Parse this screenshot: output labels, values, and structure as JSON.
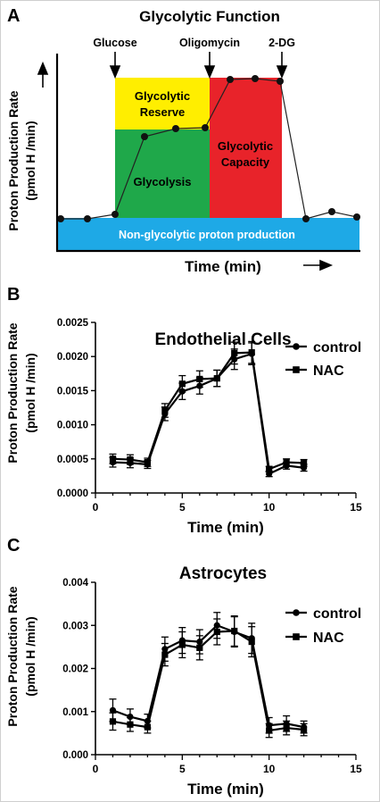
{
  "figure": {
    "panels": [
      {
        "letter": "A",
        "title": "Glycolytic Function",
        "xlabel": "Time (min)",
        "ylabel": [
          "Proton Production Rate",
          "(pmol H /min)"
        ],
        "injections": [
          "Glucose",
          "Oligomycin",
          "2-DG"
        ],
        "regions": {
          "nonglycolytic": "Non-glycolytic proton production",
          "reserve": [
            "Glycolytic",
            "Reserve"
          ],
          "glycolysis": "Glycolysis",
          "capacity": [
            "Glycolytic",
            "Capacity"
          ]
        },
        "colors": {
          "nonglycolytic": "#1ea9e6",
          "reserve": "#ffee00",
          "glycolysis": "#1fa84a",
          "capacity": "#e8232a"
        }
      }
    ]
  },
  "chart_data": [
    {
      "type": "line",
      "letter": "B",
      "title": "Endothelial Cells",
      "xlabel": "Time (min)",
      "ylabel": [
        "Proton Production Rate",
        "(pmol H /min)"
      ],
      "xlim": [
        0,
        15
      ],
      "ylim": [
        0,
        0.0025
      ],
      "xticks": [
        "0",
        "5",
        "10",
        "15"
      ],
      "yticks": [
        "0.0000",
        "0.0005",
        "0.0010",
        "0.0015",
        "0.0020",
        "0.0025"
      ],
      "legend_position": "right",
      "x": [
        1,
        2,
        3,
        4,
        5,
        6,
        7,
        8,
        9,
        10,
        11,
        12
      ],
      "series": [
        {
          "name": "control",
          "marker": "circle",
          "values": [
            0.00045,
            0.00044,
            0.00042,
            0.00116,
            0.00149,
            0.00157,
            0.00168,
            0.00196,
            0.00204,
            0.00028,
            0.0004,
            0.00037
          ],
          "errors": [
            7e-05,
            7e-05,
            6e-05,
            0.0001,
            0.00012,
            0.00012,
            0.00012,
            0.00015,
            0.00016,
            4e-05,
            5e-05,
            5e-05
          ]
        },
        {
          "name": "NAC",
          "marker": "square",
          "values": [
            0.0005,
            0.00049,
            0.00045,
            0.00121,
            0.0016,
            0.00167,
            0.00168,
            0.00205,
            0.00206,
            0.00035,
            0.00045,
            0.00044
          ],
          "errors": [
            7e-05,
            7e-05,
            6e-05,
            0.0001,
            0.00012,
            0.00012,
            0.00012,
            0.00016,
            0.00016,
            4e-05,
            5e-05,
            5e-05
          ]
        }
      ]
    },
    {
      "type": "line",
      "letter": "C",
      "title": "Astrocytes",
      "xlabel": "Time (min)",
      "ylabel": [
        "Proton Production Rate",
        "(pmol H /min)"
      ],
      "xlim": [
        0,
        15
      ],
      "ylim": [
        0,
        0.004
      ],
      "xticks": [
        "0",
        "5",
        "10",
        "15"
      ],
      "yticks": [
        "0.000",
        "0.001",
        "0.002",
        "0.003",
        "0.004"
      ],
      "legend_position": "top-right",
      "x": [
        1,
        2,
        3,
        4,
        5,
        6,
        7,
        8,
        9,
        10,
        11,
        12
      ],
      "series": [
        {
          "name": "control",
          "marker": "circle",
          "values": [
            0.00103,
            0.00088,
            0.00078,
            0.00245,
            0.00265,
            0.00262,
            0.003,
            0.00285,
            0.0027,
            0.00068,
            0.00072,
            0.00064
          ],
          "errors": [
            0.00026,
            0.00018,
            0.00016,
            0.00028,
            0.0003,
            0.00028,
            0.0003,
            0.00035,
            0.00035,
            0.00018,
            0.00018,
            0.00014
          ]
        },
        {
          "name": "NAC",
          "marker": "square",
          "values": [
            0.00077,
            0.0007,
            0.00064,
            0.00232,
            0.00255,
            0.00248,
            0.00285,
            0.00287,
            0.00262,
            0.00056,
            0.00062,
            0.00058
          ],
          "errors": [
            0.0002,
            0.00016,
            0.00014,
            0.00026,
            0.0003,
            0.00028,
            0.0003,
            0.00035,
            0.00035,
            0.00016,
            0.00016,
            0.00014
          ]
        }
      ]
    }
  ]
}
